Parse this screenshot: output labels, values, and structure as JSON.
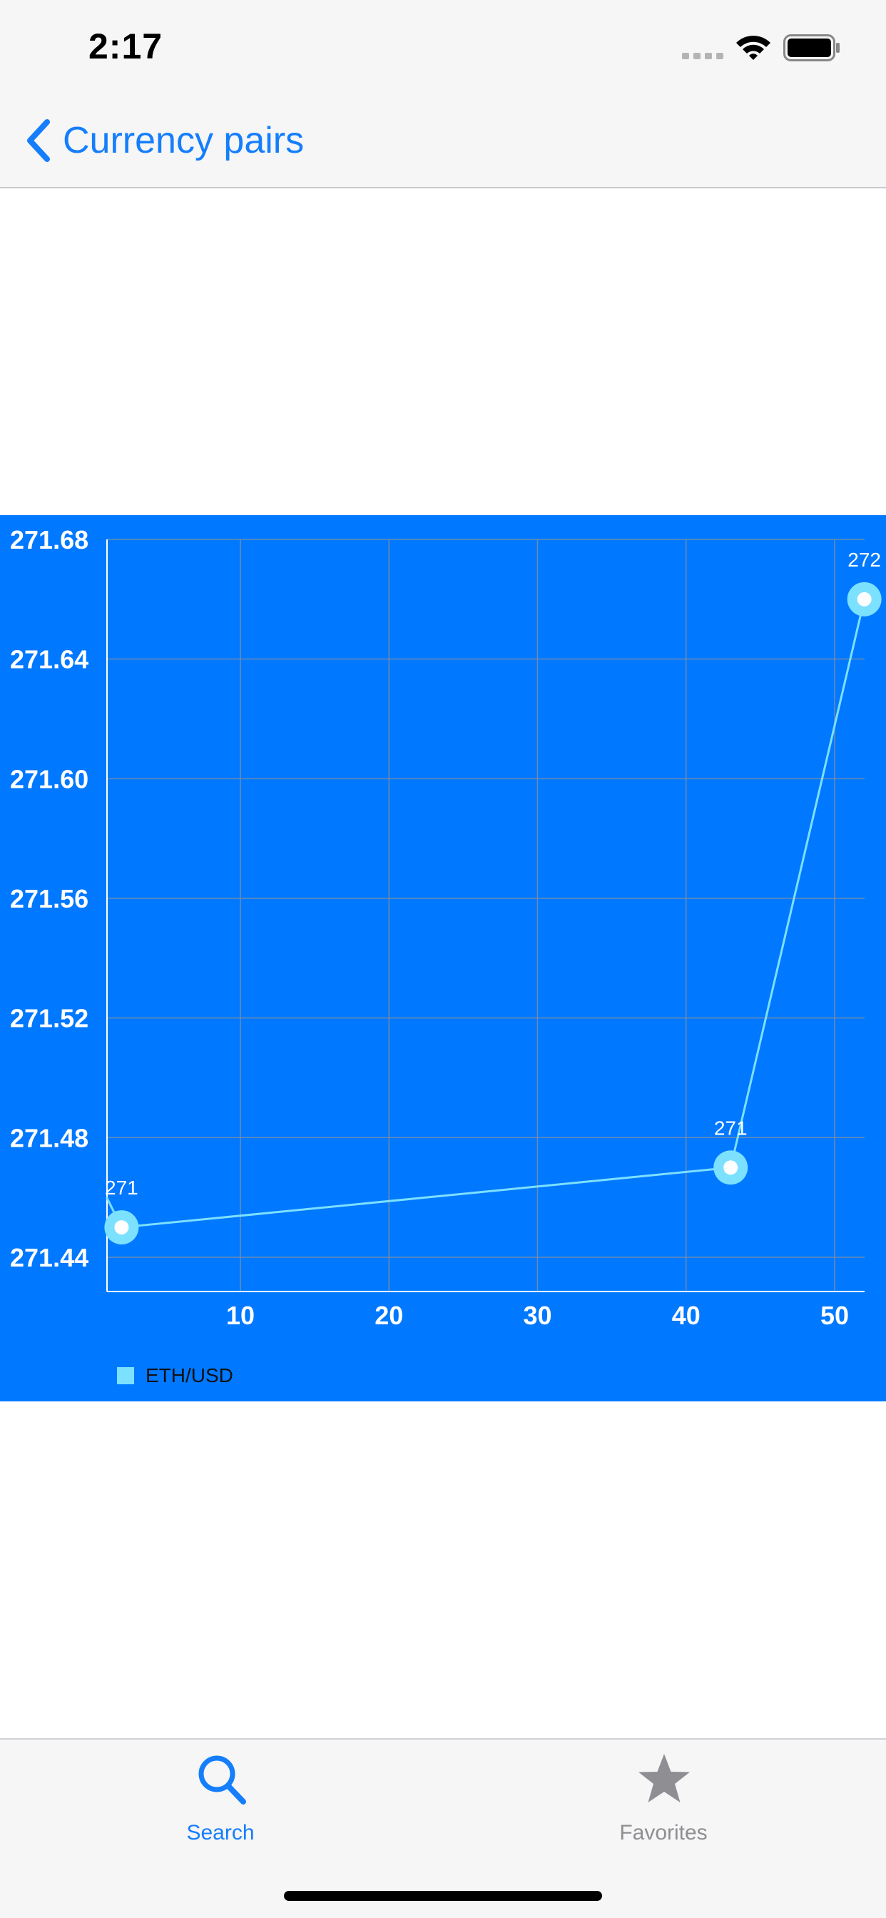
{
  "status_bar": {
    "time": "2:17"
  },
  "nav": {
    "back_label": "Currency pairs"
  },
  "colors": {
    "accent": "#157efb",
    "chart_background": "#0078ff",
    "series": "#7ce0ff",
    "tab_inactive": "#8e8e93"
  },
  "chart_data": {
    "type": "line",
    "title": "",
    "xlabel": "",
    "ylabel": "",
    "xlim": [
      1,
      52
    ],
    "ylim": [
      271.44,
      271.68
    ],
    "x_ticks": [
      10,
      20,
      30,
      40,
      50
    ],
    "y_ticks": [
      271.68,
      271.64,
      271.6,
      271.56,
      271.52,
      271.48,
      271.44
    ],
    "grid": true,
    "legend": "bottom-left",
    "series": [
      {
        "name": "ETH/USD",
        "x": [
          1,
          2,
          43,
          52
        ],
        "y": [
          271.46,
          271.45,
          271.47,
          271.66
        ],
        "data_labels": [
          "",
          "271",
          "271",
          "272"
        ]
      }
    ]
  },
  "tabs": [
    {
      "label": "Search",
      "icon": "search-icon",
      "active": true
    },
    {
      "label": "Favorites",
      "icon": "star-icon",
      "active": false
    }
  ]
}
